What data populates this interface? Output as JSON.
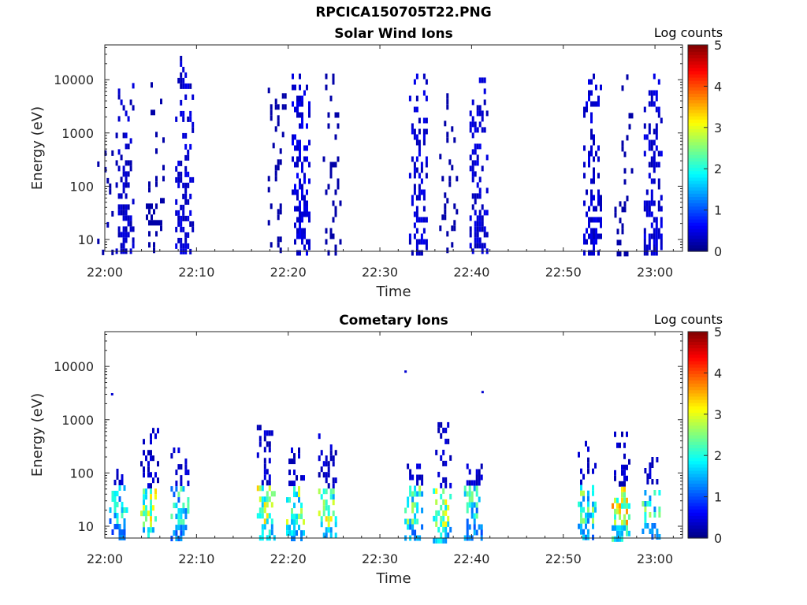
{
  "figure_title": "RPCICA150705T22.PNG",
  "chart_data": [
    {
      "type": "heatmap",
      "title": "Solar Wind Ions",
      "xlabel": "Time",
      "ylabel": "Energy (eV)",
      "x_ticks": [
        "22:00",
        "22:10",
        "22:20",
        "22:30",
        "22:40",
        "22:50",
        "23:00"
      ],
      "x_range_minutes": [
        0,
        63
      ],
      "y_ticks": [
        "10",
        "100",
        "1000",
        "10000"
      ],
      "y_range_eV": [
        6,
        45000
      ],
      "y_scale": "log",
      "colorbar": {
        "label": "Log counts",
        "ticks": [
          "0",
          "1",
          "2",
          "3",
          "4",
          "5"
        ],
        "range": [
          0,
          5
        ],
        "colormap": "jet"
      },
      "bursts": [
        {
          "t": 0.2,
          "emin": 6,
          "emax": 2500,
          "level": 0.2,
          "density": 0.15
        },
        {
          "t": 2.2,
          "emin": 6,
          "emax": 11000,
          "level": 0.35,
          "density": 0.7
        },
        {
          "t": 5.5,
          "emin": 300,
          "emax": 9000,
          "level": 0.15,
          "density": 0.3
        },
        {
          "t": 8.7,
          "emin": 6,
          "emax": 28000,
          "level": 0.4,
          "density": 0.75
        },
        {
          "t": 18.8,
          "emin": 600,
          "emax": 9000,
          "level": 0.15,
          "density": 0.3
        },
        {
          "t": 21.4,
          "emin": 6,
          "emax": 13000,
          "level": 0.45,
          "density": 0.8
        },
        {
          "t": 24.8,
          "emin": 600,
          "emax": 13000,
          "level": 0.15,
          "density": 0.3
        },
        {
          "t": 34.2,
          "emin": 6,
          "emax": 13000,
          "level": 0.4,
          "density": 0.75
        },
        {
          "t": 37.5,
          "emin": 400,
          "emax": 9000,
          "level": 0.15,
          "density": 0.3
        },
        {
          "t": 40.8,
          "emin": 6,
          "emax": 11000,
          "level": 0.4,
          "density": 0.75
        },
        {
          "t": 53.2,
          "emin": 6,
          "emax": 13000,
          "level": 0.4,
          "density": 0.75
        },
        {
          "t": 56.6,
          "emin": 400,
          "emax": 16000,
          "level": 0.15,
          "density": 0.3
        },
        {
          "t": 59.8,
          "emin": 6,
          "emax": 13000,
          "level": 0.4,
          "density": 0.75
        }
      ]
    },
    {
      "type": "heatmap",
      "title": "Cometary Ions",
      "xlabel": "Time",
      "ylabel": "Energy (eV)",
      "x_ticks": [
        "22:00",
        "22:10",
        "22:20",
        "22:30",
        "22:40",
        "22:50",
        "23:00"
      ],
      "x_range_minutes": [
        0,
        63
      ],
      "y_ticks": [
        "10",
        "100",
        "1000",
        "10000"
      ],
      "y_range_eV": [
        6,
        45000
      ],
      "y_scale": "log",
      "colorbar": {
        "label": "Log counts",
        "ticks": [
          "0",
          "1",
          "2",
          "3",
          "4",
          "5"
        ],
        "range": [
          0,
          5
        ],
        "colormap": "jet"
      },
      "bursts": [
        {
          "t": 1.5,
          "emin": 6,
          "emax": 120,
          "level": 1.6,
          "density": 0.8
        },
        {
          "t": 4.9,
          "emin": 6,
          "emax": 700,
          "level": 2.4,
          "density": 0.85
        },
        {
          "t": 8.2,
          "emin": 6,
          "emax": 300,
          "level": 1.8,
          "density": 0.8
        },
        {
          "t": 17.6,
          "emin": 6,
          "emax": 800,
          "level": 2.4,
          "density": 0.85
        },
        {
          "t": 20.8,
          "emin": 6,
          "emax": 300,
          "level": 2.2,
          "density": 0.85
        },
        {
          "t": 24.3,
          "emin": 6,
          "emax": 700,
          "level": 2.4,
          "density": 0.85
        },
        {
          "t": 33.7,
          "emin": 6,
          "emax": 150,
          "level": 2.0,
          "density": 0.85
        },
        {
          "t": 36.8,
          "emin": 6,
          "emax": 900,
          "level": 2.3,
          "density": 0.85
        },
        {
          "t": 40.2,
          "emin": 6,
          "emax": 150,
          "level": 1.8,
          "density": 0.8
        },
        {
          "t": 52.6,
          "emin": 6,
          "emax": 400,
          "level": 2.0,
          "density": 0.8
        },
        {
          "t": 56.3,
          "emin": 6,
          "emax": 600,
          "level": 2.7,
          "density": 0.85
        },
        {
          "t": 59.6,
          "emin": 6,
          "emax": 200,
          "level": 2.0,
          "density": 0.8
        }
      ],
      "isolated_points": [
        {
          "t": 0.8,
          "e": 3000
        },
        {
          "t": 32.8,
          "e": 8000
        },
        {
          "t": 41.2,
          "e": 3300
        }
      ]
    }
  ]
}
